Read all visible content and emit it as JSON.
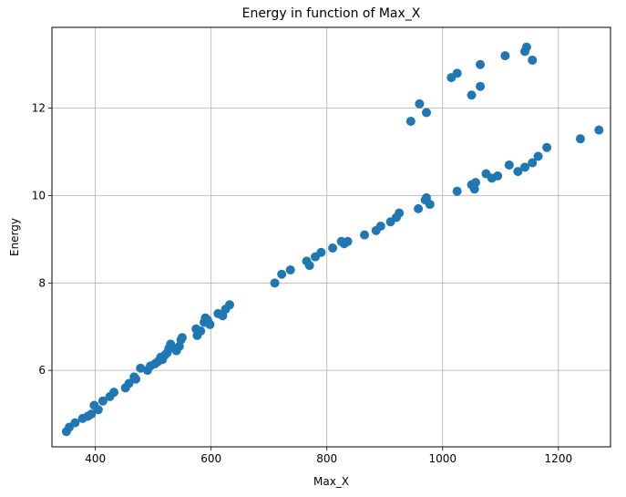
{
  "chart_data": {
    "type": "scatter",
    "title": "Energy in function of Max_X",
    "xlabel": "Max_X",
    "ylabel": "Energy",
    "xlim": [
      325,
      1290
    ],
    "ylim": [
      4.25,
      13.85
    ],
    "xticks": [
      400,
      600,
      800,
      1000,
      1200
    ],
    "yticks": [
      6,
      8,
      10,
      12
    ],
    "grid": true,
    "marker_color": "#1f77b4",
    "series": [
      {
        "points": [
          [
            350,
            4.6
          ],
          [
            355,
            4.7
          ],
          [
            365,
            4.8
          ],
          [
            378,
            4.9
          ],
          [
            387,
            4.95
          ],
          [
            393,
            5.0
          ],
          [
            398,
            5.2
          ],
          [
            405,
            5.1
          ],
          [
            413,
            5.3
          ],
          [
            425,
            5.4
          ],
          [
            432,
            5.5
          ],
          [
            452,
            5.6
          ],
          [
            458,
            5.7
          ],
          [
            467,
            5.85
          ],
          [
            470,
            5.8
          ],
          [
            478,
            6.05
          ],
          [
            490,
            6.0
          ],
          [
            495,
            6.1
          ],
          [
            503,
            6.15
          ],
          [
            508,
            6.2
          ],
          [
            513,
            6.3
          ],
          [
            516,
            6.25
          ],
          [
            520,
            6.35
          ],
          [
            524,
            6.4
          ],
          [
            527,
            6.5
          ],
          [
            530,
            6.6
          ],
          [
            540,
            6.45
          ],
          [
            545,
            6.55
          ],
          [
            548,
            6.7
          ],
          [
            550,
            6.75
          ],
          [
            574,
            6.95
          ],
          [
            576,
            6.8
          ],
          [
            582,
            6.9
          ],
          [
            588,
            7.1
          ],
          [
            590,
            7.2
          ],
          [
            594,
            7.15
          ],
          [
            598,
            7.05
          ],
          [
            612,
            7.3
          ],
          [
            620,
            7.25
          ],
          [
            625,
            7.4
          ],
          [
            632,
            7.5
          ],
          [
            710,
            8.0
          ],
          [
            722,
            8.2
          ],
          [
            737,
            8.3
          ],
          [
            765,
            8.5
          ],
          [
            770,
            8.4
          ],
          [
            780,
            8.6
          ],
          [
            790,
            8.7
          ],
          [
            810,
            8.8
          ],
          [
            825,
            8.95
          ],
          [
            830,
            8.9
          ],
          [
            836,
            8.95
          ],
          [
            865,
            9.1
          ],
          [
            885,
            9.2
          ],
          [
            893,
            9.3
          ],
          [
            910,
            9.4
          ],
          [
            920,
            9.5
          ],
          [
            925,
            9.6
          ],
          [
            958,
            9.7
          ],
          [
            970,
            9.9
          ],
          [
            972,
            9.95
          ],
          [
            978,
            9.8
          ],
          [
            1025,
            10.1
          ],
          [
            1050,
            10.25
          ],
          [
            1055,
            10.15
          ],
          [
            1057,
            10.3
          ],
          [
            1075,
            10.5
          ],
          [
            1085,
            10.4
          ],
          [
            1095,
            10.45
          ],
          [
            1115,
            10.7
          ],
          [
            1130,
            10.55
          ],
          [
            1142,
            10.65
          ],
          [
            1155,
            10.75
          ],
          [
            1165,
            10.9
          ],
          [
            1180,
            11.1
          ],
          [
            1238,
            11.3
          ],
          [
            1270,
            11.5
          ],
          [
            945,
            11.7
          ],
          [
            960,
            12.1
          ],
          [
            972,
            11.9
          ],
          [
            1015,
            12.7
          ],
          [
            1025,
            12.8
          ],
          [
            1050,
            12.3
          ],
          [
            1065,
            13.0
          ],
          [
            1065,
            12.5
          ],
          [
            1108,
            13.2
          ],
          [
            1142,
            13.3
          ],
          [
            1145,
            13.4
          ],
          [
            1155,
            13.1
          ]
        ]
      }
    ]
  }
}
